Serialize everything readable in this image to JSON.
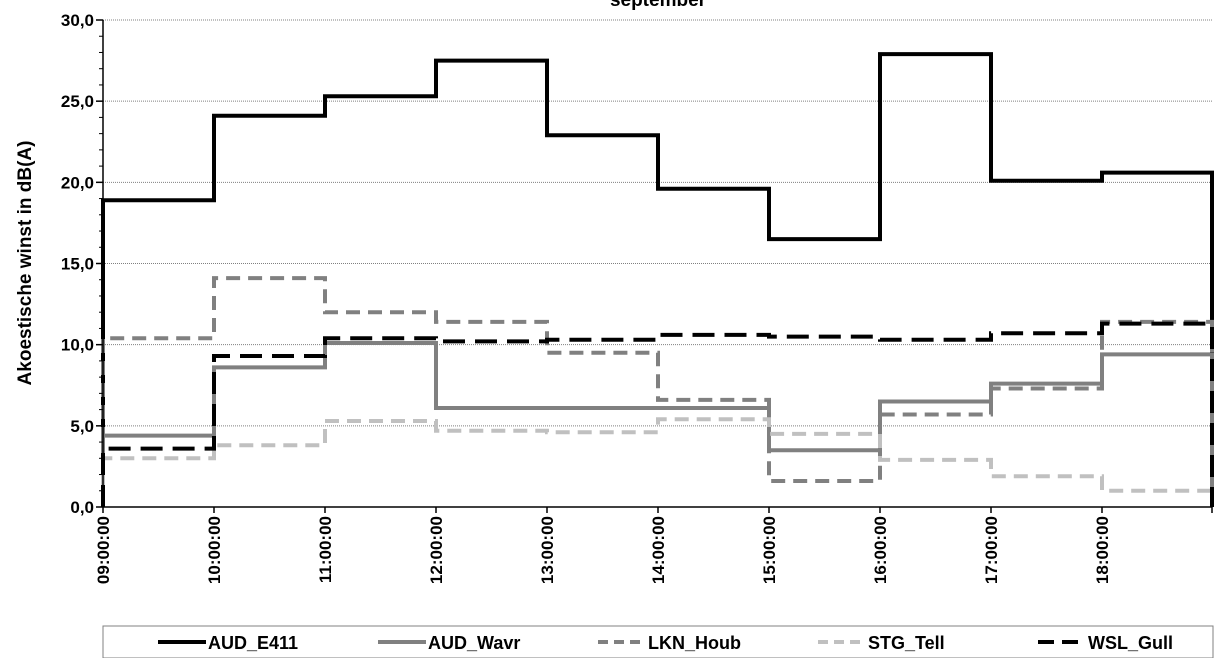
{
  "chart_data": {
    "type": "line",
    "step": true,
    "title": "september",
    "xlabel": "",
    "ylabel": "Akoestische winst in dB(A)",
    "ylim": [
      0,
      30
    ],
    "yticks": [
      "0,0",
      "5,0",
      "10,0",
      "15,0",
      "20,0",
      "25,0",
      "30,0"
    ],
    "ytick_values": [
      0,
      5,
      10,
      15,
      20,
      25,
      30
    ],
    "x": [
      "09:00:00",
      "10:00:00",
      "11:00:00",
      "12:00:00",
      "13:00:00",
      "14:00:00",
      "15:00:00",
      "16:00:00",
      "17:00:00",
      "18:00:00"
    ],
    "grid": true,
    "legend_position": "bottom",
    "series": [
      {
        "name": "AUD_E411",
        "color": "#000000",
        "dash": "solid",
        "values": [
          18.9,
          24.1,
          25.3,
          27.5,
          22.9,
          19.6,
          16.5,
          27.9,
          20.1,
          20.6
        ]
      },
      {
        "name": "AUD_Wavr",
        "color": "#808080",
        "dash": "solid",
        "values": [
          4.4,
          8.6,
          10.1,
          6.1,
          6.1,
          6.1,
          3.5,
          6.5,
          7.6,
          9.4
        ]
      },
      {
        "name": "LKN_Houb",
        "color": "#808080",
        "dash": "dashed",
        "values": [
          10.4,
          14.1,
          12.0,
          11.4,
          9.5,
          6.6,
          1.6,
          5.7,
          7.3,
          11.4
        ]
      },
      {
        "name": "STG_Tell",
        "color": "#c0c0c0",
        "dash": "dashed",
        "values": [
          3.0,
          3.8,
          5.3,
          4.7,
          4.6,
          5.4,
          4.5,
          2.9,
          1.9,
          1.0
        ]
      },
      {
        "name": "WSL_Gull",
        "color": "#000000",
        "dash": "longdash",
        "values": [
          3.6,
          9.3,
          10.4,
          10.2,
          10.3,
          10.6,
          10.5,
          10.3,
          10.7,
          11.3
        ]
      }
    ]
  }
}
